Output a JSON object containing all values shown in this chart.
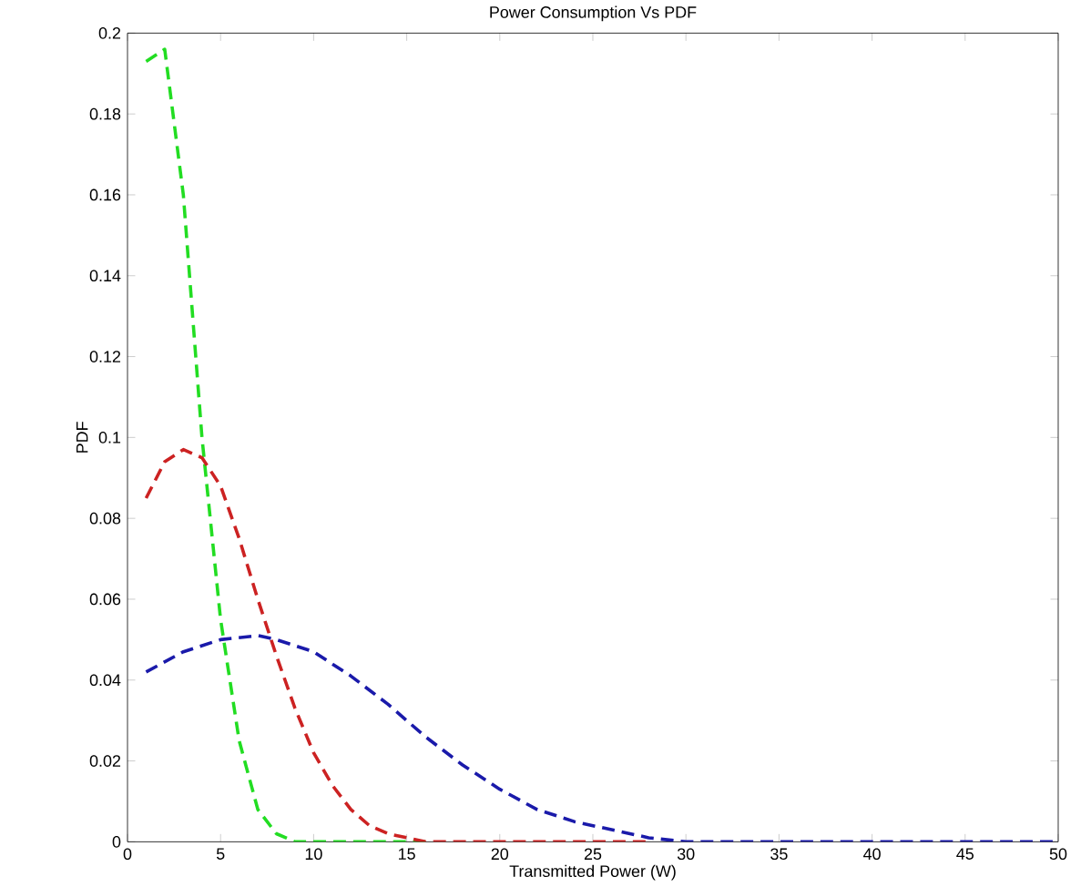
{
  "chart_data": {
    "type": "line",
    "title": "Power Consumption Vs PDF",
    "xlabel": "Transmitted Power (W)",
    "ylabel": "PDF",
    "xlim": [
      0,
      50
    ],
    "ylim": [
      0,
      0.2
    ],
    "xticks": [
      0,
      5,
      10,
      15,
      20,
      25,
      30,
      35,
      40,
      45,
      50
    ],
    "yticks": [
      0,
      0.02,
      0.04,
      0.06,
      0.08,
      0.1,
      0.12,
      0.14,
      0.16,
      0.18,
      0.2
    ],
    "line_style": "dashed",
    "marker": "none",
    "grid": false,
    "series": [
      {
        "color": "#22dd22",
        "x": [
          1,
          2,
          3,
          4,
          5,
          6,
          7,
          8,
          9,
          10,
          16
        ],
        "values": [
          0.193,
          0.196,
          0.16,
          0.1,
          0.055,
          0.025,
          0.008,
          0.002,
          0,
          0,
          0
        ]
      },
      {
        "color": "#cc2222",
        "x": [
          1,
          2,
          3,
          4,
          5,
          6,
          7,
          8,
          9,
          10,
          11,
          12,
          13,
          14,
          15,
          16,
          28
        ],
        "values": [
          0.085,
          0.094,
          0.097,
          0.095,
          0.088,
          0.075,
          0.06,
          0.046,
          0.033,
          0.022,
          0.014,
          0.008,
          0.004,
          0.002,
          0.001,
          0,
          0
        ]
      },
      {
        "color": "#1a1aaa",
        "x": [
          1,
          3,
          5,
          7,
          8,
          10,
          12,
          14,
          16,
          18,
          20,
          22,
          24,
          26,
          28,
          30,
          40,
          50
        ],
        "values": [
          0.042,
          0.047,
          0.05,
          0.051,
          0.05,
          0.047,
          0.041,
          0.034,
          0.026,
          0.019,
          0.013,
          0.008,
          0.005,
          0.003,
          0.001,
          0,
          0,
          0
        ]
      }
    ]
  }
}
